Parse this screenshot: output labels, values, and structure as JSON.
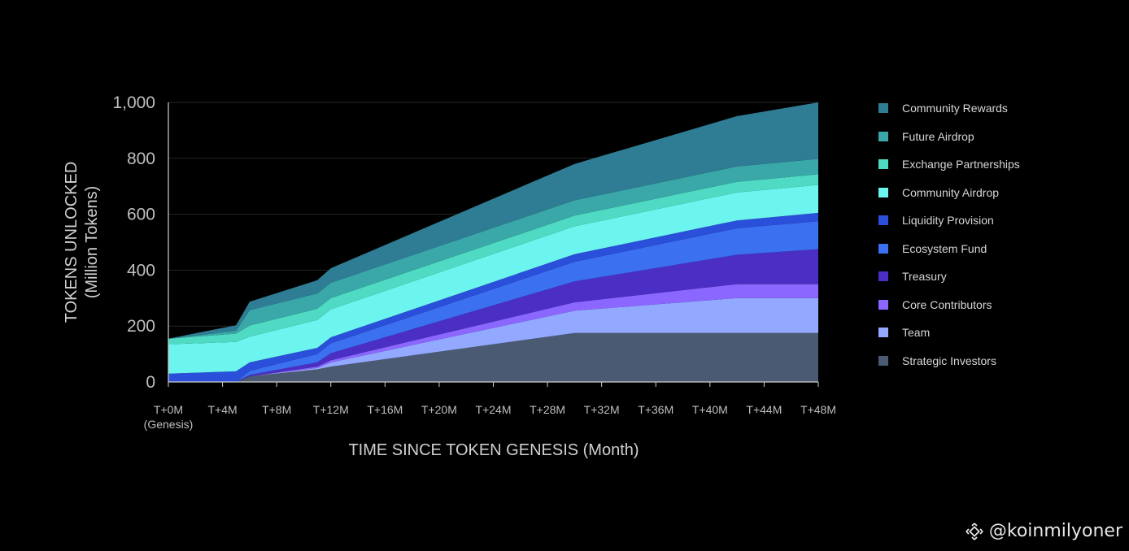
{
  "chart_data": {
    "type": "area",
    "stacked": true,
    "xlabel": "TIME SINCE TOKEN GENESIS (Month)",
    "ylabel": "TOKENS UNLOCKED",
    "ylabel_sub": "(Million Tokens)",
    "ylim": [
      0,
      1000
    ],
    "yticks": [
      0,
      200,
      400,
      600,
      800,
      1000
    ],
    "ytick_labels": [
      "0",
      "200",
      "400",
      "600",
      "800",
      "1,000"
    ],
    "xlim": [
      0,
      48
    ],
    "xticks": [
      0,
      4,
      8,
      12,
      16,
      20,
      24,
      28,
      32,
      36,
      40,
      44,
      48
    ],
    "xtick_labels": [
      "T+0M",
      "T+4M",
      "T+8M",
      "T+12M",
      "T+16M",
      "T+20M",
      "T+24M",
      "T+28M",
      "T+32M",
      "T+36M",
      "T+40M",
      "T+44M",
      "T+48M"
    ],
    "xtick_sublabel": "(Genesis)",
    "x": [
      0,
      5,
      6,
      11,
      12,
      30,
      42,
      48
    ],
    "series": [
      {
        "name": "Strategic Investors",
        "color": "#4b5a73",
        "values": [
          0,
          0,
          20,
          45,
          55,
          175,
          175,
          175
        ]
      },
      {
        "name": "Team",
        "color": "#93a8ff",
        "values": [
          0,
          0,
          0,
          5,
          15,
          80,
          125,
          125
        ]
      },
      {
        "name": "Core Contributors",
        "color": "#8c67ff",
        "values": [
          0,
          0,
          0,
          5,
          8,
          30,
          50,
          50
        ]
      },
      {
        "name": "Treasury",
        "color": "#4b2fc4",
        "values": [
          0,
          0,
          5,
          15,
          25,
          75,
          105,
          125
        ]
      },
      {
        "name": "Ecosystem Fund",
        "color": "#3b70f0",
        "values": [
          0,
          0,
          15,
          30,
          35,
          70,
          95,
          100
        ]
      },
      {
        "name": "Liquidity Provision",
        "color": "#2a4fdb",
        "values": [
          30,
          38,
          30,
          22,
          22,
          27,
          28,
          30
        ]
      },
      {
        "name": "Community Airdrop",
        "color": "#6cf5ee",
        "values": [
          105,
          105,
          92,
          100,
          100,
          100,
          100,
          100
        ]
      },
      {
        "name": "Exchange Partnerships",
        "color": "#4fdbc3",
        "values": [
          20,
          30,
          40,
          40,
          40,
          38,
          38,
          38
        ]
      },
      {
        "name": "Future Airdrop",
        "color": "#3aa7a8",
        "values": [
          0,
          10,
          55,
          55,
          55,
          55,
          55,
          55
        ]
      },
      {
        "name": "Community Rewards",
        "color": "#2f7d94",
        "values": [
          0,
          20,
          30,
          47,
          52,
          130,
          180,
          202
        ]
      }
    ]
  },
  "watermark": {
    "text": "@koinmilyoner",
    "icon": "binance-diamond-icon"
  }
}
